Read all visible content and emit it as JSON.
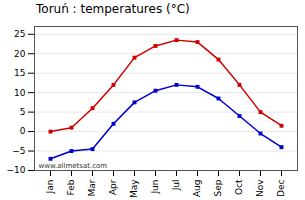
{
  "chart_data": {
    "type": "line",
    "title": "Toruń : temperatures (°C)",
    "categories": [
      "Jan",
      "Feb",
      "Mar",
      "Apr",
      "May",
      "Jun",
      "Jul",
      "Aug",
      "Sep",
      "Oct",
      "Nov",
      "Dec"
    ],
    "series": [
      {
        "color": "#cc0000",
        "marker": "square",
        "values": [
          0,
          1,
          6,
          12,
          19,
          22,
          23.5,
          23,
          18.5,
          12,
          5,
          1.5
        ]
      },
      {
        "color": "#0000cc",
        "marker": "square",
        "values": [
          -7,
          -5,
          -4.5,
          2,
          7.5,
          10.5,
          12,
          11.5,
          8.5,
          4,
          -0.5,
          -4
        ]
      }
    ],
    "ylim": [
      -10,
      27
    ],
    "yticks": [
      -10,
      -5,
      0,
      5,
      10,
      15,
      20,
      25
    ],
    "grid": true,
    "annotation": "www.allmetsat.com"
  }
}
